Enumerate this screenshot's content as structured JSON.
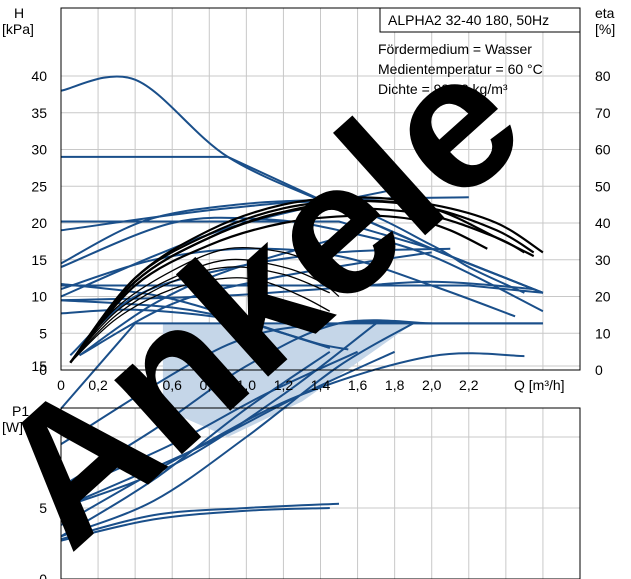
{
  "header": {
    "title": "ALPHA2 32-40 180, 50Hz",
    "fluid_lines": [
      "Fördermedium = Wasser",
      "Medientemperatur = 60 °C",
      "Dichte = 983,2 kg/m³"
    ]
  },
  "watermark": {
    "text": "Ankele",
    "color": "#000000"
  },
  "colors": {
    "curve": "#1a4f8a",
    "eta": "#000000",
    "grid": "#c8c8c8",
    "band": "#c5d6e8"
  },
  "top_chart": {
    "ylabel_lines": [
      "H",
      "[kPa]"
    ],
    "y2label_lines": [
      "eta",
      "[%]"
    ],
    "xlabel": "Q [m³/h]",
    "xticks": [
      "0",
      "0,2",
      "0,4",
      "0,6",
      "0,8",
      "1,0",
      "1,2",
      "1,4",
      "1,6",
      "1,8",
      "2,0",
      "2,2"
    ],
    "yticks": [
      "0",
      "5",
      "10",
      "15",
      "20",
      "25",
      "30",
      "35",
      "40"
    ],
    "y2ticks": [
      "0",
      "10",
      "20",
      "30",
      "40",
      "50",
      "60",
      "70",
      "80"
    ]
  },
  "bottom_chart": {
    "ylabel_lines": [
      "P1",
      "[W]"
    ],
    "yticks": [
      "0",
      "5",
      "10",
      "15"
    ]
  },
  "chart_data": [
    {
      "type": "line",
      "title": "ALPHA2 32-40 180, 50Hz",
      "xlabel": "Q [m³/h]",
      "ylabel": "H [kPa]",
      "y2label": "eta [%]",
      "xlim": [
        0,
        2.8
      ],
      "ylim": [
        0,
        40
      ],
      "y2lim": [
        0,
        80
      ],
      "grid": true,
      "series": [
        {
          "x": [
            0,
            0.4,
            0.9,
            1.5,
            2.0,
            2.5,
            2.6
          ],
          "y": [
            38,
            39.5,
            29,
            22,
            16.5,
            11.5,
            10.5
          ]
        },
        {
          "x": [
            0,
            0.9,
            1.5,
            2.0,
            2.6
          ],
          "y": [
            29,
            29,
            22,
            16.5,
            10.5
          ]
        },
        {
          "x": [
            0,
            0.9,
            1.5,
            2.0,
            2.6
          ],
          "y": [
            20.2,
            20.2,
            20.2,
            16.5,
            10.5
          ]
        },
        {
          "x": [
            0,
            1.5,
            2.2,
            2.6
          ],
          "y": [
            11.5,
            11.5,
            11.5,
            10.5
          ]
        },
        {
          "x": [
            0,
            0.9,
            1.5,
            2.0,
            2.2,
            2.5
          ],
          "y": [
            19,
            22,
            22.5,
            17,
            14,
            10.5
          ]
        },
        {
          "x": [
            0,
            0.6,
            1.1,
            1.5,
            2.0,
            2.6
          ],
          "y": [
            14,
            20,
            20.5,
            19,
            15.5,
            8
          ]
        },
        {
          "x": [
            0,
            0.5,
            1.0,
            1.5,
            2.0,
            2.45
          ],
          "y": [
            11,
            15,
            16.5,
            15.5,
            11.5,
            7.3
          ]
        },
        {
          "x": [
            0,
            0.8,
            1.4,
            2.0,
            2.55
          ],
          "y": [
            9.5,
            10,
            11,
            12,
            11
          ]
        },
        {
          "x": [
            0,
            0.4,
            0.9,
            1.2,
            1.4,
            1.55
          ],
          "y": [
            7.7,
            8.2,
            7,
            5,
            3.5,
            2.8
          ]
        },
        {
          "x": [
            0,
            0.6,
            1.0,
            1.3,
            1.45
          ],
          "y": [
            9.5,
            8.5,
            6.5,
            4.2,
            3.0
          ]
        },
        {
          "x": [
            0,
            0.5,
            0.9,
            1.2,
            1.45
          ],
          "y": [
            11.7,
            10.2,
            7.5,
            5.0,
            3.0
          ]
        },
        {
          "x": [
            0.1,
            0.5,
            0.9,
            1.5
          ],
          "y": [
            2,
            9,
            13.5,
            18
          ]
        },
        {
          "x": [
            0.1,
            0.6,
            1.1,
            1.6,
            2.0
          ],
          "y": [
            2,
            9,
            12.3,
            14.5,
            16
          ]
        },
        {
          "x": [
            0.05,
            0.4,
            0.9,
            1.5,
            2.1
          ],
          "y": [
            2,
            10,
            13.8,
            16,
            16.5
          ]
        },
        {
          "x": [
            0,
            0.45,
            0.95,
            1.5,
            2.2
          ],
          "y": [
            14.5,
            20.3,
            22.5,
            23.2,
            23.5
          ]
        },
        {
          "x": [
            0,
            0.5,
            0.9,
            1.35,
            1.85
          ],
          "y": [
            10,
            15.5,
            19.3,
            22.2,
            24.8
          ]
        }
      ]
    },
    {
      "type": "line",
      "xlabel": "Q [m³/h]",
      "ylabel": "eta [%]",
      "xlim": [
        0,
        2.8
      ],
      "ylim": [
        0,
        80
      ],
      "series": [
        {
          "x": [
            0.05,
            0.4,
            0.8,
            1.2,
            1.6,
            2.0,
            2.35,
            2.6
          ],
          "y": [
            2,
            25,
            38,
            45,
            47,
            45,
            40,
            32
          ]
        },
        {
          "x": [
            0.05,
            0.4,
            0.8,
            1.2,
            1.6,
            2.0,
            2.35,
            2.55
          ],
          "y": [
            2,
            25,
            37,
            44,
            46,
            44,
            38,
            32
          ]
        },
        {
          "x": [
            0.05,
            0.4,
            0.8,
            1.2,
            1.6,
            2.0,
            2.35,
            2.5
          ],
          "y": [
            2,
            24,
            36,
            43,
            44,
            42,
            36,
            32
          ]
        },
        {
          "x": [
            0.05,
            0.4,
            0.8,
            1.2,
            1.6,
            2.0,
            2.35,
            2.55
          ],
          "y": [
            2,
            24,
            36,
            43,
            46,
            44,
            36,
            31
          ]
        },
        {
          "x": [
            0.05,
            0.4,
            0.8,
            1.2,
            1.6,
            1.9,
            2.1,
            2.3
          ],
          "y": [
            2,
            23,
            34,
            40,
            42,
            41,
            38,
            33
          ]
        },
        {
          "x": [
            0.05,
            0.3,
            0.6,
            0.9,
            1.2,
            1.4,
            1.55
          ],
          "y": [
            2,
            17,
            27,
            33,
            32,
            28,
            23
          ]
        },
        {
          "x": [
            0.05,
            0.3,
            0.6,
            0.9,
            1.2,
            1.4,
            1.5
          ],
          "y": [
            2,
            16,
            25,
            30,
            28,
            24,
            20
          ]
        },
        {
          "x": [
            0.05,
            0.3,
            0.6,
            0.9,
            1.2,
            1.45
          ],
          "y": [
            2,
            15,
            24,
            28,
            26,
            21
          ]
        },
        {
          "x": [
            0.05,
            0.3,
            0.6,
            0.9,
            1.1,
            1.3,
            1.45
          ],
          "y": [
            2,
            14,
            22,
            25,
            24,
            20,
            16
          ]
        }
      ]
    },
    {
      "type": "line",
      "xlabel": "Q [m³/h]",
      "ylabel": "P1 [W]",
      "xlim": [
        0,
        2.8
      ],
      "ylim": [
        0,
        20
      ],
      "grid": true,
      "series": [
        {
          "x": [
            0,
            0.4,
            2.6
          ],
          "y": [
            12,
            18,
            18
          ]
        },
        {
          "x": [
            0,
            0.9,
            1.5,
            2.0,
            2.6
          ],
          "y": [
            9.5,
            16.5,
            18,
            18,
            18
          ]
        },
        {
          "x": [
            0,
            0.5,
            1.0,
            1.5,
            2.0
          ],
          "y": [
            6.5,
            10.5,
            15,
            18,
            18
          ]
        },
        {
          "x": [
            0,
            0.6,
            1.2,
            1.7
          ],
          "y": [
            5,
            8,
            13,
            18
          ]
        },
        {
          "x": [
            0,
            0.5,
            1.0,
            1.5,
            1.9
          ],
          "y": [
            3,
            5.5,
            10,
            15,
            18
          ]
        },
        {
          "x": [
            0,
            0.7,
            1.3,
            2.0,
            2.5
          ],
          "y": [
            3.8,
            9,
            13,
            15.7,
            15.7
          ]
        },
        {
          "x": [
            0,
            0.7,
            1.3,
            1.8
          ],
          "y": [
            5,
            9,
            13,
            16
          ]
        },
        {
          "x": [
            0,
            0.6,
            1.1,
            1.6
          ],
          "y": [
            6,
            9.5,
            13,
            16
          ]
        },
        {
          "x": [
            0,
            0.5,
            1.0,
            1.45
          ],
          "y": [
            3,
            7,
            12,
            16
          ]
        },
        {
          "x": [
            0,
            0.5,
            1.0,
            1.5
          ],
          "y": [
            2.8,
            4.5,
            5.0,
            5.3
          ]
        },
        {
          "x": [
            0,
            0.5,
            1.0,
            1.45
          ],
          "y": [
            2.7,
            4.2,
            4.8,
            5.0
          ]
        }
      ]
    }
  ]
}
